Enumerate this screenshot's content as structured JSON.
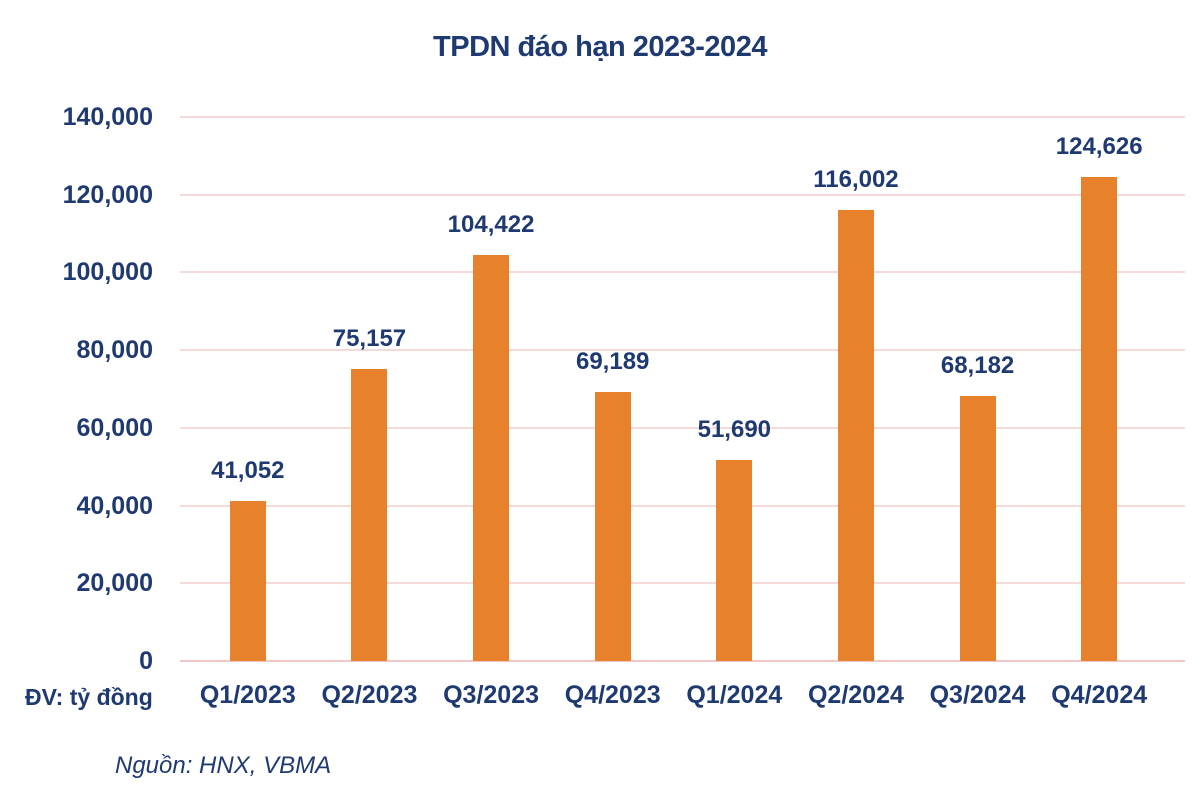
{
  "chart_data": {
    "type": "bar",
    "title": "TPDN đáo hạn 2023-2024",
    "categories": [
      "Q1/2023",
      "Q2/2023",
      "Q3/2023",
      "Q4/2023",
      "Q1/2024",
      "Q2/2024",
      "Q3/2024",
      "Q4/2024"
    ],
    "values": [
      41052,
      75157,
      104422,
      69189,
      51690,
      116002,
      68182,
      124626
    ],
    "value_labels": [
      "41,052",
      "75,157",
      "104,422",
      "69,189",
      "51,690",
      "116,002",
      "68,182",
      "124,626"
    ],
    "ytick_values": [
      0,
      20000,
      40000,
      60000,
      80000,
      100000,
      120000,
      140000
    ],
    "ytick_labels": [
      "0",
      "20,000",
      "40,000",
      "60,000",
      "80,000",
      "100,000",
      "120,000",
      "140,000"
    ],
    "ylim": [
      0,
      140000
    ],
    "xlabel": "",
    "ylabel": "",
    "unit_label": "ĐV: tỷ đồng",
    "source": "Nguồn: HNX, VBMA",
    "grid": "horizontal",
    "legend": "none",
    "colors": {
      "bar": "#E8812B",
      "text": "#1F3A70",
      "gridline": "#F6DADA",
      "axis_line": "#F0C6C6",
      "background": "#FFFFFF"
    }
  }
}
